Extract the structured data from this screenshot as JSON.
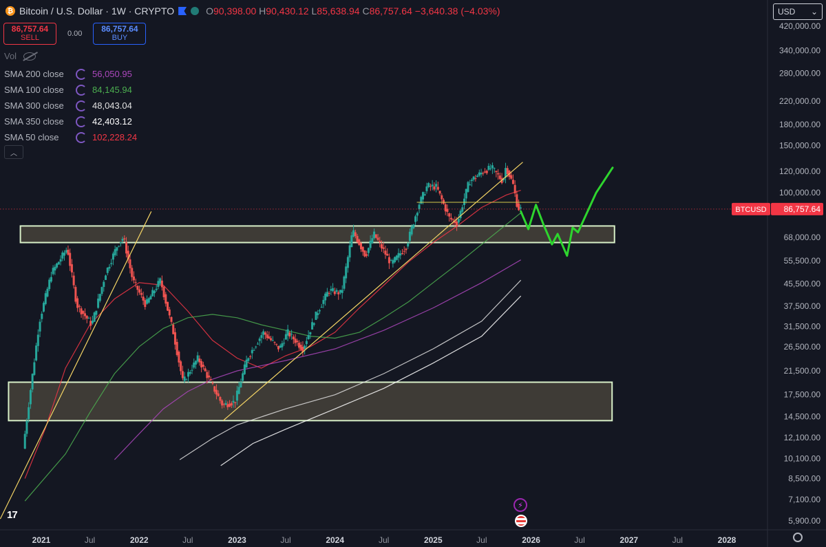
{
  "header": {
    "title": "Bitcoin / U.S. Dollar · 1W · CRYPTO",
    "open_label": "O",
    "open": "90,398.00",
    "high_label": "H",
    "high": "90,430.12",
    "low_label": "L",
    "low": "85,638.94",
    "close_label": "C",
    "close": "86,757.64",
    "change": "−3,640.38 (−4.03%)"
  },
  "trade": {
    "sell_price": "86,757.64",
    "sell_label": "SELL",
    "spread": "0.00",
    "buy_price": "86,757.64",
    "buy_label": "BUY"
  },
  "volume_label": "Vol",
  "currency": {
    "selected": "USD"
  },
  "indicators": [
    {
      "name": "SMA 200 close",
      "value": "56,050.95",
      "color": "#ab47bc"
    },
    {
      "name": "SMA 100 close",
      "value": "84,145.94",
      "color": "#4caf50"
    },
    {
      "name": "SMA 300 close",
      "value": "48,043.04",
      "color": "#e0e0e0"
    },
    {
      "name": "SMA 350 close",
      "value": "42,403.12",
      "color": "#ffffff"
    },
    {
      "name": "SMA 50 close",
      "value": "102,228.24",
      "color": "#f23645"
    }
  ],
  "chart_data": {
    "type": "line",
    "scale": "log",
    "xlabel": "",
    "ylabel": "",
    "x_ticks": [
      "2021",
      "Jul",
      "2022",
      "Jul",
      "2023",
      "Jul",
      "2024",
      "Jul",
      "2025",
      "Jul",
      "2026",
      "Jul",
      "2027",
      "Jul",
      "2028"
    ],
    "y_ticks": [
      "420,000.00",
      "340,000.00",
      "280,000.00",
      "220,000.00",
      "180,000.00",
      "150,000.00",
      "120,000.00",
      "100,000.00",
      "68,000.00",
      "55,500.00",
      "45,500.00",
      "37,500.00",
      "31,500.00",
      "26,500.00",
      "21,500.00",
      "17,500.00",
      "14,500.00",
      "12,100.00",
      "10,100.00",
      "8,500.00",
      "7,100.00",
      "5,900.00"
    ],
    "ylim": [
      5500,
      450000
    ],
    "price_label": {
      "symbol": "BTCUSD",
      "value": "86,757.64"
    },
    "series": [
      {
        "key": "price",
        "points": [
          [
            "2020-11-01",
            11000
          ],
          [
            "2020-12-01",
            19000
          ],
          [
            "2021-01-01",
            33000
          ],
          [
            "2021-02-15",
            50000
          ],
          [
            "2021-04-15",
            62000
          ],
          [
            "2021-05-20",
            38000
          ],
          [
            "2021-07-15",
            32000
          ],
          [
            "2021-09-05",
            50000
          ],
          [
            "2021-10-20",
            64000
          ],
          [
            "2021-11-10",
            68000
          ],
          [
            "2021-12-15",
            47000
          ],
          [
            "2022-02-01",
            38000
          ],
          [
            "2022-03-28",
            47000
          ],
          [
            "2022-05-15",
            30000
          ],
          [
            "2022-06-20",
            19500
          ],
          [
            "2022-08-15",
            24000
          ],
          [
            "2022-10-01",
            19500
          ],
          [
            "2022-11-15",
            16000
          ],
          [
            "2022-12-31",
            16500
          ],
          [
            "2023-02-15",
            24000
          ],
          [
            "2023-04-15",
            30000
          ],
          [
            "2023-06-15",
            26000
          ],
          [
            "2023-07-15",
            30000
          ],
          [
            "2023-09-10",
            26000
          ],
          [
            "2023-10-30",
            35000
          ],
          [
            "2023-12-15",
            43000
          ],
          [
            "2024-02-01",
            42000
          ],
          [
            "2024-03-14",
            72000
          ],
          [
            "2024-05-01",
            58000
          ],
          [
            "2024-06-01",
            70000
          ],
          [
            "2024-08-05",
            54000
          ],
          [
            "2024-09-30",
            63000
          ],
          [
            "2024-11-15",
            90000
          ],
          [
            "2024-12-17",
            106000
          ],
          [
            "2025-01-20",
            105000
          ],
          [
            "2025-03-10",
            80000
          ],
          [
            "2025-04-08",
            77000
          ],
          [
            "2025-05-22",
            110000
          ],
          [
            "2025-07-14",
            120000
          ],
          [
            "2025-08-14",
            124000
          ],
          [
            "2025-09-25",
            110000
          ],
          [
            "2025-10-06",
            125000
          ],
          [
            "2025-11-01",
            108000
          ],
          [
            "2025-11-17",
            90000
          ],
          [
            "2025-11-24",
            86757
          ]
        ]
      },
      {
        "key": "sma50",
        "name": "SMA 50 close",
        "color": "#f23645",
        "points": [
          [
            "2020-11-01",
            8500
          ],
          [
            "2021-01-15",
            13000
          ],
          [
            "2021-04-01",
            22000
          ],
          [
            "2021-07-01",
            32000
          ],
          [
            "2021-10-01",
            40000
          ],
          [
            "2022-01-01",
            46000
          ],
          [
            "2022-04-01",
            45000
          ],
          [
            "2022-07-01",
            36000
          ],
          [
            "2022-10-01",
            28000
          ],
          [
            "2023-01-01",
            24000
          ],
          [
            "2023-04-01",
            22000
          ],
          [
            "2023-07-01",
            24500
          ],
          [
            "2023-10-01",
            26500
          ],
          [
            "2024-01-01",
            30000
          ],
          [
            "2024-04-01",
            37000
          ],
          [
            "2024-07-01",
            45000
          ],
          [
            "2024-10-01",
            55000
          ],
          [
            "2025-01-01",
            65000
          ],
          [
            "2025-04-01",
            75000
          ],
          [
            "2025-07-01",
            88000
          ],
          [
            "2025-10-01",
            98000
          ],
          [
            "2025-11-24",
            102000
          ]
        ]
      },
      {
        "key": "sma100",
        "name": "SMA 100 close",
        "color": "#4caf50",
        "points": [
          [
            "2020-11-01",
            7000
          ],
          [
            "2021-04-01",
            10500
          ],
          [
            "2021-07-01",
            15000
          ],
          [
            "2021-10-01",
            21000
          ],
          [
            "2022-01-01",
            26500
          ],
          [
            "2022-04-01",
            31000
          ],
          [
            "2022-07-01",
            34000
          ],
          [
            "2022-10-01",
            35000
          ],
          [
            "2023-01-01",
            34000
          ],
          [
            "2023-04-01",
            32000
          ],
          [
            "2023-07-01",
            30500
          ],
          [
            "2023-10-01",
            29000
          ],
          [
            "2024-01-01",
            28500
          ],
          [
            "2024-04-01",
            30000
          ],
          [
            "2024-07-01",
            34000
          ],
          [
            "2024-10-01",
            39000
          ],
          [
            "2025-01-01",
            46000
          ],
          [
            "2025-04-01",
            54000
          ],
          [
            "2025-07-01",
            64000
          ],
          [
            "2025-10-01",
            76000
          ],
          [
            "2025-11-24",
            84000
          ]
        ]
      },
      {
        "key": "sma200",
        "name": "SMA 200 close",
        "color": "#ab47bc",
        "points": [
          [
            "2021-10-01",
            10000
          ],
          [
            "2022-01-01",
            12500
          ],
          [
            "2022-04-01",
            15500
          ],
          [
            "2022-07-01",
            18000
          ],
          [
            "2022-10-01",
            20000
          ],
          [
            "2023-01-01",
            21500
          ],
          [
            "2023-07-01",
            23500
          ],
          [
            "2024-01-01",
            26000
          ],
          [
            "2024-07-01",
            30500
          ],
          [
            "2025-01-01",
            37000
          ],
          [
            "2025-07-01",
            46000
          ],
          [
            "2025-11-24",
            56000
          ]
        ]
      },
      {
        "key": "sma300",
        "name": "SMA 300 close",
        "color": "#e0e0e0",
        "points": [
          [
            "2022-06-01",
            10000
          ],
          [
            "2022-10-01",
            12000
          ],
          [
            "2023-01-01",
            13500
          ],
          [
            "2023-07-01",
            15500
          ],
          [
            "2024-01-01",
            17500
          ],
          [
            "2024-07-01",
            21000
          ],
          [
            "2025-01-01",
            26000
          ],
          [
            "2025-07-01",
            33000
          ],
          [
            "2025-11-24",
            47000
          ]
        ]
      },
      {
        "key": "sma350",
        "name": "SMA 350 close",
        "color": "#ffffff",
        "points": [
          [
            "2022-11-01",
            9500
          ],
          [
            "2023-03-01",
            11500
          ],
          [
            "2023-07-01",
            13000
          ],
          [
            "2024-01-01",
            15500
          ],
          [
            "2024-07-01",
            18500
          ],
          [
            "2025-01-01",
            23000
          ],
          [
            "2025-07-01",
            29000
          ],
          [
            "2025-11-24",
            41000
          ]
        ]
      }
    ],
    "projection": {
      "color": "#2ed52e",
      "points": [
        [
          "2025-11-24",
          85000
        ],
        [
          "2025-12-22",
          73000
        ],
        [
          "2026-01-19",
          90000
        ],
        [
          "2026-02-16",
          76000
        ],
        [
          "2026-03-20",
          64000
        ],
        [
          "2026-04-10",
          70000
        ],
        [
          "2026-05-15",
          58000
        ],
        [
          "2026-06-05",
          74000
        ],
        [
          "2026-06-25",
          71000
        ],
        [
          "2026-09-01",
          100000
        ],
        [
          "2026-11-01",
          124000
        ]
      ]
    },
    "zones": [
      {
        "from": 65000,
        "to": 75000,
        "start": "2020-10-15",
        "end": "2026-11-08"
      },
      {
        "from": 14000,
        "to": 19500,
        "start": "2020-09-01",
        "end": "2026-10-30"
      }
    ],
    "trendlines": [
      {
        "from": [
          "2020-08-01",
          6000
        ],
        "to": [
          "2022-02-15",
          85000
        ]
      },
      {
        "from": [
          "2022-11-10",
          14000
        ],
        "to": [
          "2025-12-01",
          130000
        ]
      }
    ],
    "hlines": [
      {
        "value": 92000,
        "from": "2024-11-01",
        "to": "2026-01-31",
        "color": "#d4c84a"
      },
      {
        "value": 86757,
        "from": "2020-08-01",
        "to": "2028-04-01",
        "color": "#f23645",
        "dotted": true
      }
    ]
  }
}
